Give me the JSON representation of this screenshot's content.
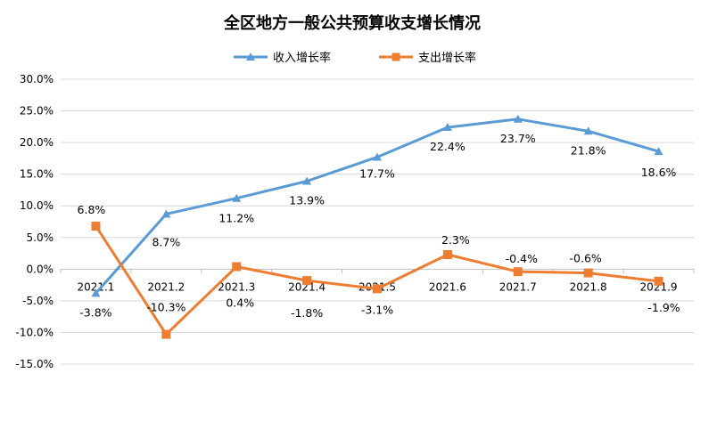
{
  "chart_data": {
    "type": "line",
    "title": "全区地方一般公共预算收支增长情况",
    "categories": [
      "2021.1",
      "2021.2",
      "2021.3",
      "2021.4",
      "2021.5",
      "2021.6",
      "2021.7",
      "2021.8",
      "2021.9"
    ],
    "series": [
      {
        "name": "收入增长率",
        "color": "#5b9bd5",
        "marker": "triangle",
        "values": [
          -3.8,
          8.7,
          11.2,
          13.9,
          17.7,
          22.4,
          23.7,
          21.8,
          18.6
        ],
        "labels": [
          "-3.8%",
          "8.7%",
          "11.2%",
          "13.9%",
          "17.7%",
          "22.4%",
          "23.7%",
          "21.8%",
          "18.6%"
        ]
      },
      {
        "name": "支出增长率",
        "color": "#ed7d31",
        "marker": "square",
        "values": [
          6.8,
          -10.3,
          0.4,
          -1.8,
          -3.1,
          2.3,
          -0.4,
          -0.6,
          -1.9
        ],
        "labels": [
          "6.8%",
          "-10.3%",
          "0.4%",
          "-1.8%",
          "-3.1%",
          "2.3%",
          "-0.4%",
          "-0.6%",
          "-1.9%"
        ]
      }
    ],
    "ylim": [
      -15,
      30
    ],
    "yticks": [
      30,
      25,
      20,
      15,
      10,
      5,
      0,
      -5,
      -10,
      -15
    ],
    "ytick_labels": [
      "30.0%",
      "25.0%",
      "20.0%",
      "15.0%",
      "10.0%",
      "5.0%",
      "0.0%",
      "-5.0%",
      "-10.0%",
      "-15.0%"
    ],
    "legend_position": "top",
    "grid": true
  }
}
